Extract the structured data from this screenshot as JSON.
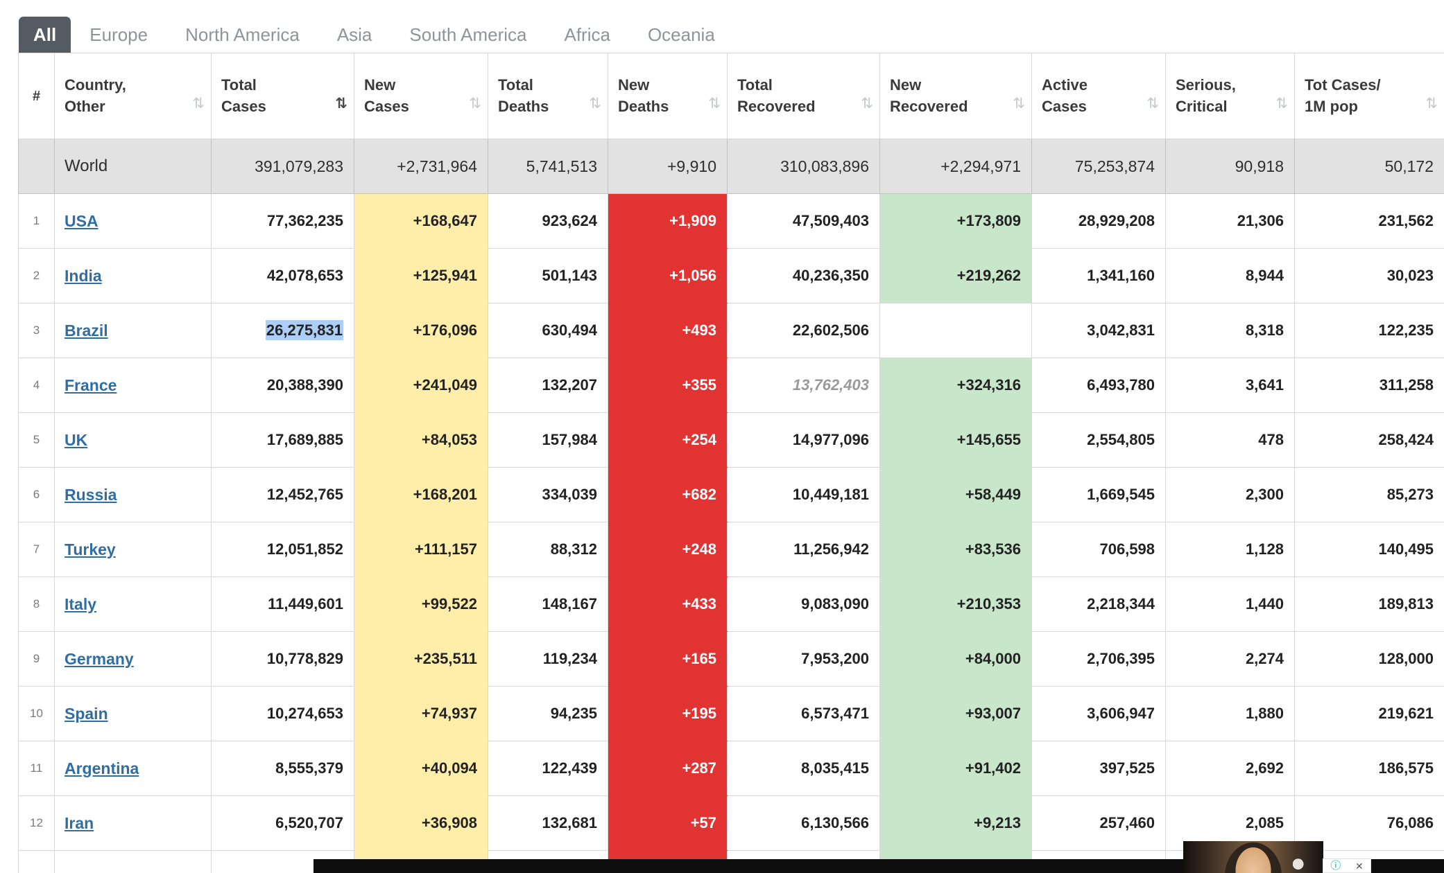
{
  "tabs": [
    {
      "label": "All",
      "active": true
    },
    {
      "label": "Europe",
      "active": false
    },
    {
      "label": "North America",
      "active": false
    },
    {
      "label": "Asia",
      "active": false
    },
    {
      "label": "South America",
      "active": false
    },
    {
      "label": "Africa",
      "active": false
    },
    {
      "label": "Oceania",
      "active": false
    }
  ],
  "colors": {
    "active_tab_bg": "#545B62",
    "link_color": "#2F6DA4",
    "new_cases_bg": "#FFEEAA",
    "new_deaths_bg": "#E23333",
    "new_recovered_bg": "#C8E6C9",
    "world_row_bg": "#E2E2E2",
    "selection_bg": "#ACCEF7"
  },
  "table": {
    "sort_icon_glyph": "⇅",
    "headers": [
      {
        "id": "rank",
        "line1": "#",
        "line2": "",
        "sortable": false
      },
      {
        "id": "country",
        "line1": "Country,",
        "line2": "Other",
        "sortable": true
      },
      {
        "id": "total_cases",
        "line1": "Total",
        "line2": "Cases",
        "sortable": true,
        "sorted": "desc"
      },
      {
        "id": "new_cases",
        "line1": "New",
        "line2": "Cases",
        "sortable": true
      },
      {
        "id": "total_deaths",
        "line1": "Total",
        "line2": "Deaths",
        "sortable": true
      },
      {
        "id": "new_deaths",
        "line1": "New",
        "line2": "Deaths",
        "sortable": true
      },
      {
        "id": "total_recovered",
        "line1": "Total",
        "line2": "Recovered",
        "sortable": true
      },
      {
        "id": "new_recovered",
        "line1": "New",
        "line2": "Recovered",
        "sortable": true
      },
      {
        "id": "active_cases",
        "line1": "Active",
        "line2": "Cases",
        "sortable": true
      },
      {
        "id": "serious_critical",
        "line1": "Serious,",
        "line2": "Critical",
        "sortable": true
      },
      {
        "id": "cases_per_1m",
        "line1": "Tot Cases/",
        "line2": "1M pop",
        "sortable": true
      }
    ],
    "world_row": {
      "country": "World",
      "total_cases": "391,079,283",
      "new_cases": "+2,731,964",
      "total_deaths": "5,741,513",
      "new_deaths": "+9,910",
      "total_recovered": "310,083,896",
      "new_recovered": "+2,294,971",
      "active_cases": "75,253,874",
      "serious_critical": "90,918",
      "cases_per_1m": "50,172"
    },
    "rows": [
      {
        "rank": "1",
        "country": "USA",
        "total_cases": "77,362,235",
        "new_cases": "+168,647",
        "total_deaths": "923,624",
        "new_deaths": "+1,909",
        "total_recovered": "47,509,403",
        "new_recovered": "+173,809",
        "active_cases": "28,929,208",
        "serious_critical": "21,306",
        "cases_per_1m": "231,562"
      },
      {
        "rank": "2",
        "country": "India",
        "total_cases": "42,078,653",
        "new_cases": "+125,941",
        "total_deaths": "501,143",
        "new_deaths": "+1,056",
        "total_recovered": "40,236,350",
        "new_recovered": "+219,262",
        "active_cases": "1,341,160",
        "serious_critical": "8,944",
        "cases_per_1m": "30,023"
      },
      {
        "rank": "3",
        "country": "Brazil",
        "total_cases": "26,275,831",
        "total_cases_selected": true,
        "new_cases": "+176,096",
        "total_deaths": "630,494",
        "new_deaths": "+493",
        "total_recovered": "22,602,506",
        "new_recovered": "",
        "active_cases": "3,042,831",
        "serious_critical": "8,318",
        "cases_per_1m": "122,235"
      },
      {
        "rank": "4",
        "country": "France",
        "total_cases": "20,388,390",
        "new_cases": "+241,049",
        "total_deaths": "132,207",
        "new_deaths": "+355",
        "total_recovered": "13,762,403",
        "total_recovered_estimate": true,
        "new_recovered": "+324,316",
        "active_cases": "6,493,780",
        "serious_critical": "3,641",
        "cases_per_1m": "311,258"
      },
      {
        "rank": "5",
        "country": "UK",
        "total_cases": "17,689,885",
        "new_cases": "+84,053",
        "total_deaths": "157,984",
        "new_deaths": "+254",
        "total_recovered": "14,977,096",
        "new_recovered": "+145,655",
        "active_cases": "2,554,805",
        "serious_critical": "478",
        "cases_per_1m": "258,424"
      },
      {
        "rank": "6",
        "country": "Russia",
        "total_cases": "12,452,765",
        "new_cases": "+168,201",
        "total_deaths": "334,039",
        "new_deaths": "+682",
        "total_recovered": "10,449,181",
        "new_recovered": "+58,449",
        "active_cases": "1,669,545",
        "serious_critical": "2,300",
        "cases_per_1m": "85,273"
      },
      {
        "rank": "7",
        "country": "Turkey",
        "total_cases": "12,051,852",
        "new_cases": "+111,157",
        "total_deaths": "88,312",
        "new_deaths": "+248",
        "total_recovered": "11,256,942",
        "new_recovered": "+83,536",
        "active_cases": "706,598",
        "serious_critical": "1,128",
        "cases_per_1m": "140,495"
      },
      {
        "rank": "8",
        "country": "Italy",
        "total_cases": "11,449,601",
        "new_cases": "+99,522",
        "total_deaths": "148,167",
        "new_deaths": "+433",
        "total_recovered": "9,083,090",
        "new_recovered": "+210,353",
        "active_cases": "2,218,344",
        "serious_critical": "1,440",
        "cases_per_1m": "189,813"
      },
      {
        "rank": "9",
        "country": "Germany",
        "total_cases": "10,778,829",
        "new_cases": "+235,511",
        "total_deaths": "119,234",
        "new_deaths": "+165",
        "total_recovered": "7,953,200",
        "new_recovered": "+84,000",
        "active_cases": "2,706,395",
        "serious_critical": "2,274",
        "cases_per_1m": "128,000"
      },
      {
        "rank": "10",
        "country": "Spain",
        "total_cases": "10,274,653",
        "new_cases": "+74,937",
        "total_deaths": "94,235",
        "new_deaths": "+195",
        "total_recovered": "6,573,471",
        "new_recovered": "+93,007",
        "active_cases": "3,606,947",
        "serious_critical": "1,880",
        "cases_per_1m": "219,621"
      },
      {
        "rank": "11",
        "country": "Argentina",
        "total_cases": "8,555,379",
        "new_cases": "+40,094",
        "total_deaths": "122,439",
        "new_deaths": "+287",
        "total_recovered": "8,035,415",
        "new_recovered": "+91,402",
        "active_cases": "397,525",
        "serious_critical": "2,692",
        "cases_per_1m": "186,575"
      },
      {
        "rank": "12",
        "country": "Iran",
        "total_cases": "6,520,707",
        "new_cases": "+36,908",
        "total_deaths": "132,681",
        "new_deaths": "+57",
        "total_recovered": "6,130,566",
        "new_recovered": "+9,213",
        "active_cases": "257,460",
        "serious_critical": "2,085",
        "cases_per_1m": "76,086"
      }
    ]
  },
  "ad_bar": {
    "info_icon": "ⓘ",
    "close_icon": "✕"
  }
}
